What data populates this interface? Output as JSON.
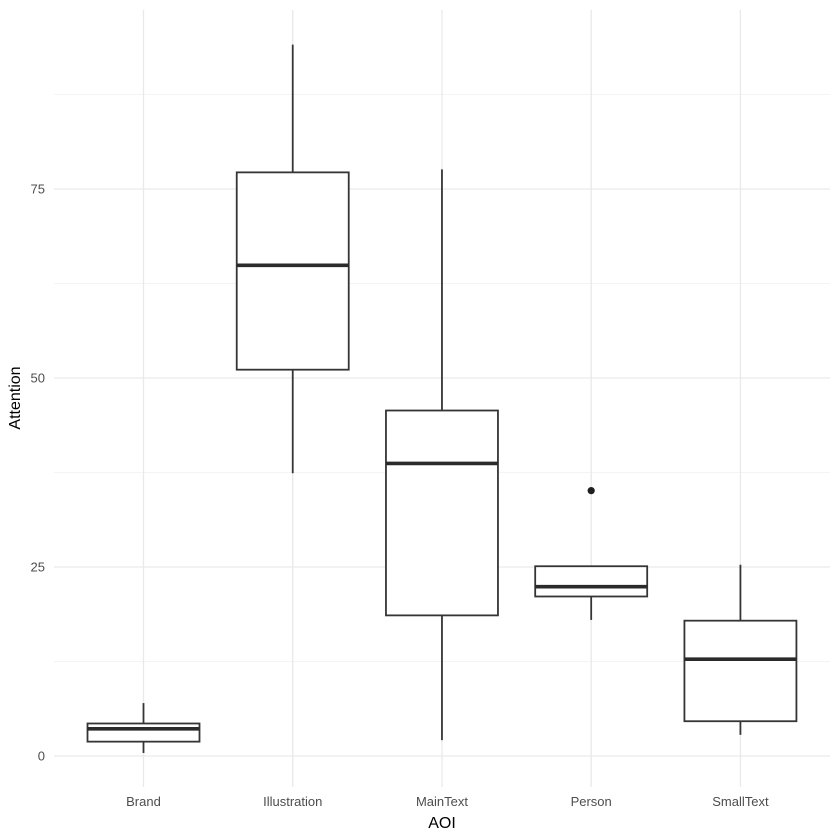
{
  "chart_data": {
    "type": "boxplot",
    "title": "",
    "xlabel": "AOI",
    "ylabel": "Attention",
    "categories": [
      "Brand",
      "Illustration",
      "MainText",
      "Person",
      "SmallText"
    ],
    "series": [
      {
        "category": "Brand",
        "min": 0.4,
        "q1": 1.9,
        "median": 3.6,
        "q3": 4.3,
        "max": 7.0,
        "outliers": []
      },
      {
        "category": "Illustration",
        "min": 37.4,
        "q1": 51.1,
        "median": 64.9,
        "q3": 77.2,
        "max": 94.1,
        "outliers": []
      },
      {
        "category": "MainText",
        "min": 2.1,
        "q1": 18.6,
        "median": 38.7,
        "q3": 45.7,
        "max": 77.6,
        "outliers": []
      },
      {
        "category": "Person",
        "min": 18.0,
        "q1": 21.1,
        "median": 22.4,
        "q3": 25.1,
        "max": 25.1,
        "outliers": [
          35.1
        ]
      },
      {
        "category": "SmallText",
        "min": 2.8,
        "q1": 4.6,
        "median": 12.8,
        "q3": 17.9,
        "max": 25.3,
        "outliers": []
      }
    ],
    "y_ticks": [
      0,
      25,
      50,
      75
    ],
    "y_minor_ticks": [
      12.5,
      37.5,
      62.5,
      87.5
    ],
    "ylim": [
      -4.3,
      98.7
    ],
    "grid": "major-and-minor, no axis lines, no tick marks",
    "legend": false
  },
  "colors": {
    "background": "#ffffff",
    "panel_background": "#ffffff",
    "grid_major": "#e9e9e9",
    "grid_minor": "#f4f4f4",
    "box_stroke": "#353535",
    "box_fill": "#ffffff",
    "median_stroke": "#2b2b2b",
    "whisker_stroke": "#353535",
    "outlier_fill": "#1f1f1f",
    "axis_text": "#4d4d4d",
    "axis_title_text": "#000000"
  }
}
